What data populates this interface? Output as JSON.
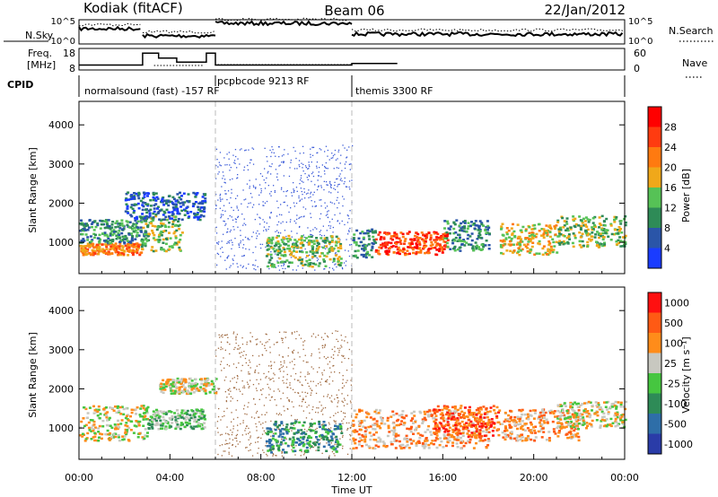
{
  "header": {
    "station": "Kodiak (fitACF)",
    "beam": "Beam 06",
    "date": "22/Jan/2012"
  },
  "colors": {
    "power": [
      "#1a3cff",
      "#2a55a8",
      "#2e8b57",
      "#56c256",
      "#f0a81a",
      "#ff7a10",
      "#ff3b10",
      "#ff0000"
    ],
    "velocity": [
      "#2a3ca8",
      "#2e6ea8",
      "#2e8b57",
      "#46c640",
      "#c8c8c0",
      "#ff8c1a",
      "#ff5a14",
      "#ff1010"
    ],
    "scatter_dots": "#3a5ad8",
    "scatter_dots_vel": "#a06a40"
  },
  "chart_data": [
    {
      "type": "line",
      "panel": "noise",
      "left_label": "N.Sky",
      "right_label": "N.Search",
      "left_ticks": [
        "10^5",
        "10^0"
      ],
      "right_ticks": [
        "10^5",
        "10^0"
      ]
    },
    {
      "type": "line",
      "panel": "frequency",
      "left_label": "Freq. [MHz]",
      "right_label": "Nave",
      "left_ticks": [
        "18",
        "8"
      ],
      "right_ticks": [
        "60",
        "0"
      ],
      "freq_steps": [
        {
          "t": 0.0,
          "f": 10.5
        },
        {
          "t": 2.8,
          "f": 10.5
        },
        {
          "t": 2.8,
          "f": 16.5
        },
        {
          "t": 3.5,
          "f": 16.5
        },
        {
          "t": 3.5,
          "f": 14.0
        },
        {
          "t": 4.3,
          "f": 14.0
        },
        {
          "t": 4.3,
          "f": 12.0
        },
        {
          "t": 5.6,
          "f": 12.0
        },
        {
          "t": 5.6,
          "f": 16.5
        },
        {
          "t": 6.0,
          "f": 16.5
        },
        {
          "t": 6.0,
          "f": 10.5
        },
        {
          "t": 12.0,
          "f": 10.5
        },
        {
          "t": 12.0,
          "f": 11.3
        },
        {
          "t": 14.0,
          "f": 11.3
        }
      ]
    },
    {
      "type": "table",
      "panel": "cpid",
      "label": "CPID",
      "programs": [
        {
          "start": 0,
          "end": 6,
          "name": "normalsound (fast) -157 RF"
        },
        {
          "start": 6,
          "end": 12,
          "name": "pcpbcode 9213 RF"
        },
        {
          "start": 12,
          "end": 24,
          "name": "themis 3300 RF"
        }
      ]
    },
    {
      "type": "heatmap",
      "panel": "power",
      "ylabel": "Slant Range [km]",
      "xlim": [
        0,
        24
      ],
      "ylim": [
        200,
        4600
      ],
      "yticks": [
        1000,
        2000,
        3000,
        4000
      ],
      "colorbar_label": "Power [dB]",
      "colorbar_ticks": [
        4,
        8,
        12,
        16,
        20,
        24,
        28
      ],
      "regions": [
        {
          "t0": 0.0,
          "t1": 2.7,
          "r0": 700,
          "r1": 1000,
          "level": 5
        },
        {
          "t0": 0.0,
          "t1": 3.0,
          "r0": 1000,
          "r1": 1600,
          "level": 2
        },
        {
          "t0": 2.7,
          "t1": 4.5,
          "r0": 800,
          "r1": 1700,
          "level": 3
        },
        {
          "t0": 2.0,
          "t1": 5.5,
          "r0": 1600,
          "r1": 2300,
          "level": 1
        },
        {
          "t0": 8.2,
          "t1": 11.5,
          "r0": 400,
          "r1": 1200,
          "level": 3
        },
        {
          "t0": 12.0,
          "t1": 13.0,
          "r0": 600,
          "r1": 1400,
          "level": 2
        },
        {
          "t0": 13.0,
          "t1": 16.2,
          "r0": 700,
          "r1": 1300,
          "level": 6
        },
        {
          "t0": 16.0,
          "t1": 18.0,
          "r0": 800,
          "r1": 1600,
          "level": 2
        },
        {
          "t0": 18.5,
          "t1": 21.0,
          "r0": 700,
          "r1": 1500,
          "level": 4
        },
        {
          "t0": 21.0,
          "t1": 24.0,
          "r0": 900,
          "r1": 1700,
          "level": 3
        }
      ]
    },
    {
      "type": "heatmap",
      "panel": "velocity",
      "ylabel": "Slant Range [km]",
      "xlabel": "Time UT",
      "xlim": [
        0,
        24
      ],
      "ylim": [
        200,
        4600
      ],
      "yticks": [
        1000,
        2000,
        3000,
        4000
      ],
      "xticks": [
        "00:00",
        "04:00",
        "08:00",
        "12:00",
        "16:00",
        "20:00",
        "00:00"
      ],
      "colorbar_label": "Velocity [m s⁻¹]",
      "colorbar_ticks": [
        "1000",
        "500",
        "100",
        "25",
        "-25",
        "-100",
        "-500",
        "-1000"
      ],
      "regions": [
        {
          "t0": 0.0,
          "t1": 3.0,
          "r0": 700,
          "r1": 1600,
          "level": 4
        },
        {
          "t0": 3.0,
          "t1": 5.5,
          "r0": 1000,
          "r1": 1500,
          "level": 3
        },
        {
          "t0": 3.5,
          "t1": 6.0,
          "r0": 1900,
          "r1": 2300,
          "level": 4
        },
        {
          "t0": 8.2,
          "t1": 11.5,
          "r0": 400,
          "r1": 1200,
          "level": 2
        },
        {
          "t0": 12.0,
          "t1": 18.0,
          "r0": 500,
          "r1": 1500,
          "level": 5
        },
        {
          "t0": 15.5,
          "t1": 18.5,
          "r0": 800,
          "r1": 1600,
          "level": 6
        },
        {
          "t0": 18.5,
          "t1": 22.0,
          "r0": 700,
          "r1": 1500,
          "level": 5
        },
        {
          "t0": 21.0,
          "t1": 24.0,
          "r0": 1000,
          "r1": 1700,
          "level": 4
        }
      ]
    }
  ]
}
